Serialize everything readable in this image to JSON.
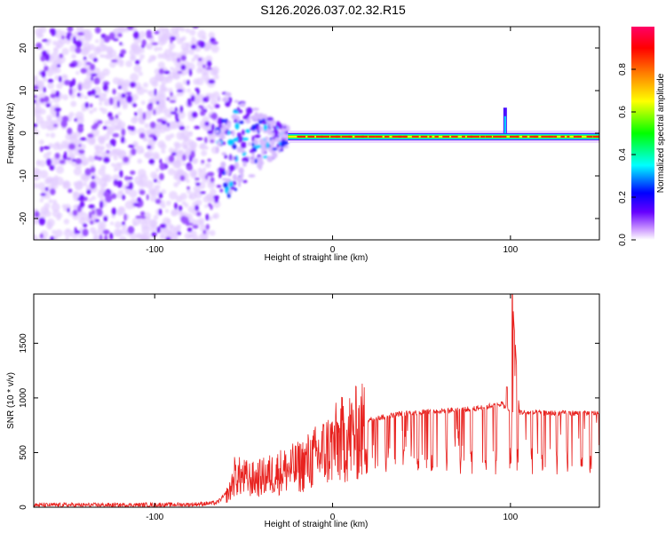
{
  "title": "S126.2026.037.02.32.R15",
  "chart_data": [
    {
      "type": "heatmap",
      "name": "spectrogram",
      "xlabel": "Height of straight line (km)",
      "ylabel": "Frequency (Hz)",
      "xlim": [
        -168,
        150
      ],
      "ylim": [
        -25,
        25
      ],
      "xticks": [
        -100,
        0,
        100
      ],
      "yticks": [
        -20,
        -10,
        0,
        10,
        20
      ],
      "colorbar": {
        "label": "Normalized spectral amplitude",
        "range": [
          0,
          1
        ],
        "ticks": [
          0.0,
          0.2,
          0.4,
          0.6,
          0.8
        ],
        "tick_labels": [
          "0.0",
          "0.2",
          "0.4",
          "0.6",
          "0.8"
        ],
        "colors": [
          "#ffffff",
          "#cc99ff",
          "#6600ff",
          "#0000ff",
          "#00ffff",
          "#00ff00",
          "#ffff00",
          "#ff7f00",
          "#ff0000",
          "#ff0066"
        ]
      },
      "description_regions": {
        "noise_x_range": [
          -168,
          -65
        ],
        "transition_x_range": [
          -65,
          -25
        ],
        "carrier_x_range": [
          -25,
          150
        ],
        "carrier_frequency_hz": -0.8,
        "spike_x": 97,
        "spike_frequency_range_hz": [
          0,
          6
        ]
      }
    },
    {
      "type": "line",
      "name": "snr",
      "xlabel": "Height of straight line (km)",
      "ylabel": "SNR (10 * v/v)",
      "xlim": [
        -168,
        150
      ],
      "ylim": [
        0,
        1950
      ],
      "xticks": [
        -100,
        0,
        100
      ],
      "yticks": [
        0,
        500,
        1000,
        1500
      ],
      "color": "#e8221f",
      "series": [
        {
          "name": "SNR",
          "x": [
            -168,
            -120,
            -80,
            -65,
            -58,
            -55,
            -50,
            -45,
            -40,
            -35,
            -30,
            -25,
            -20,
            -15,
            -10,
            -5,
            0,
            5,
            10,
            15,
            20,
            30,
            40,
            50,
            60,
            70,
            80,
            90,
            95,
            100,
            101,
            105,
            110,
            120,
            130,
            140,
            150
          ],
          "values": [
            20,
            20,
            25,
            40,
            150,
            320,
            300,
            280,
            300,
            330,
            360,
            380,
            400,
            450,
            500,
            560,
            620,
            680,
            720,
            760,
            800,
            830,
            860,
            870,
            880,
            890,
            900,
            930,
            950,
            870,
            1950,
            870,
            865,
            862,
            860,
            860,
            860
          ]
        }
      ],
      "dropouts_x": [
        30,
        40,
        48,
        56,
        64,
        72,
        78,
        86,
        92,
        100,
        104,
        112,
        118,
        126,
        132,
        140,
        145
      ]
    }
  ]
}
